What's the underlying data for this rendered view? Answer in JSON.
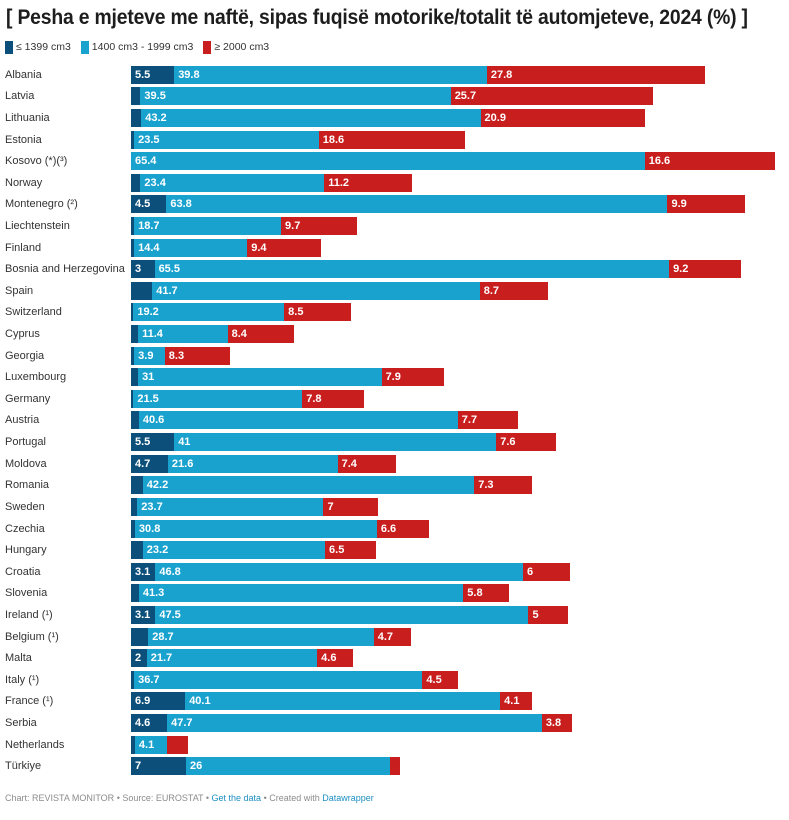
{
  "chart_data": {
    "type": "bar",
    "orientation": "horizontal",
    "stacked": true,
    "title": "[ Pesha e mjeteve me naftë, sipas fuqisë motorike/totalit të automjeteve, 2024 (%) ]",
    "xlabel": "",
    "ylabel": "",
    "grid": false,
    "legend_position": "top-left",
    "legend": [
      {
        "name": "≤ 1399 cm3",
        "color": "#0c4f7a"
      },
      {
        "name": "1400 cm3 - 1999 cm3",
        "color": "#1aa2cf"
      },
      {
        "name": "≥ 2000 cm3",
        "color": "#c81e1e"
      }
    ],
    "xlim": [
      0,
      82
    ],
    "categories": [
      "Albania",
      "Latvia",
      "Lithuania",
      "Estonia",
      "Kosovo (*)(³)",
      "Norway",
      "Montenegro (²)",
      "Liechtenstein",
      "Finland",
      "Bosnia and Herzegovina",
      "Spain",
      "Switzerland",
      "Cyprus",
      "Georgia",
      "Luxembourg",
      "Germany",
      "Austria",
      "Portugal",
      "Moldova",
      "Romania",
      "Sweden",
      "Czechia",
      "Hungary",
      "Croatia",
      "Slovenia",
      "Ireland (¹)",
      "Belgium (¹)",
      "Malta",
      "Italy (¹)",
      "France (¹)",
      "Serbia",
      "Netherlands",
      "Türkiye"
    ],
    "series": [
      {
        "name": "≤ 1399 cm3",
        "values": [
          5.5,
          1.2,
          1.3,
          0.4,
          0,
          1.2,
          4.5,
          0.4,
          0.4,
          3,
          2.7,
          0.3,
          0.9,
          0.4,
          0.9,
          0.3,
          1.0,
          5.5,
          4.7,
          1.5,
          0.8,
          0.5,
          1.5,
          3.1,
          1.0,
          3.1,
          2.2,
          2,
          0.4,
          6.9,
          4.6,
          0.5,
          7
        ],
        "labels": [
          "5.5",
          "",
          "",
          "",
          "",
          "",
          "4.5",
          "",
          "",
          "3",
          "",
          "",
          "",
          "",
          "",
          "",
          "",
          "5.5",
          "4.7",
          "",
          "",
          "",
          "",
          "3.1",
          "",
          "3.1",
          "",
          "2",
          "",
          "6.9",
          "4.6",
          "",
          "7"
        ]
      },
      {
        "name": "1400 cm3 - 1999 cm3",
        "values": [
          39.8,
          39.5,
          43.2,
          23.5,
          65.4,
          23.4,
          63.8,
          18.7,
          14.4,
          65.5,
          41.7,
          19.2,
          11.4,
          3.9,
          31,
          21.5,
          40.6,
          41,
          21.6,
          42.2,
          23.7,
          30.8,
          23.2,
          46.8,
          41.3,
          47.5,
          28.7,
          21.7,
          36.7,
          40.1,
          47.7,
          4.1,
          26
        ],
        "labels": [
          "39.8",
          "39.5",
          "43.2",
          "23.5",
          "65.4",
          "23.4",
          "63.8",
          "18.7",
          "14.4",
          "65.5",
          "41.7",
          "19.2",
          "11.4",
          "3.9",
          "31",
          "21.5",
          "40.6",
          "41",
          "21.6",
          "42.2",
          "23.7",
          "30.8",
          "23.2",
          "46.8",
          "41.3",
          "47.5",
          "28.7",
          "21.7",
          "36.7",
          "40.1",
          "47.7",
          "4.1",
          "26"
        ]
      },
      {
        "name": "≥ 2000 cm3",
        "values": [
          27.8,
          25.7,
          20.9,
          18.6,
          16.6,
          11.2,
          9.9,
          9.7,
          9.4,
          9.2,
          8.7,
          8.5,
          8.4,
          8.3,
          7.9,
          7.8,
          7.7,
          7.6,
          7.4,
          7.3,
          7,
          6.6,
          6.5,
          6,
          5.8,
          5,
          4.7,
          4.6,
          4.5,
          4.1,
          3.8,
          2.6,
          1.3
        ],
        "labels": [
          "27.8",
          "25.7",
          "20.9",
          "18.6",
          "16.6",
          "11.2",
          "9.9",
          "9.7",
          "9.4",
          "9.2",
          "8.7",
          "8.5",
          "8.4",
          "8.3",
          "7.9",
          "7.8",
          "7.7",
          "7.6",
          "7.4",
          "7.3",
          "7",
          "6.6",
          "6.5",
          "6",
          "5.8",
          "5",
          "4.7",
          "4.6",
          "4.5",
          "4.1",
          "3.8",
          "",
          ""
        ]
      }
    ]
  },
  "footer": {
    "chart_by": "Chart: REVISTA MONITOR",
    "separator": " • ",
    "source": "Source: EUROSTAT",
    "get_data": "Get the data",
    "created_with": "Created with ",
    "datawrapper": "Datawrapper"
  }
}
